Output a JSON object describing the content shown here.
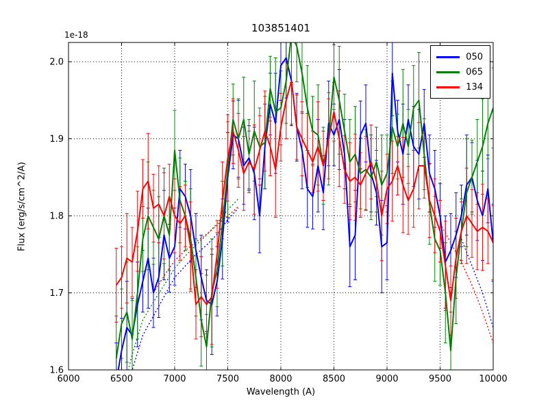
{
  "chart_data": {
    "type": "line",
    "title": "103851401",
    "xlabel": "Wavelength (A)",
    "ylabel": "Flux (erg/s/cm^2/A)",
    "y_offset_factor": "1e-18",
    "xlim": [
      6000,
      10000
    ],
    "ylim": [
      1.6,
      2.025
    ],
    "x_ticks": [
      6000,
      6500,
      7000,
      7500,
      8000,
      8500,
      9000,
      9500,
      10000
    ],
    "y_ticks": [
      1.6,
      1.7,
      1.8,
      1.9,
      2.0
    ],
    "grid": true,
    "grid_style": "dotted",
    "legend_position": "upper right",
    "x": [
      6450,
      6500,
      6550,
      6600,
      6650,
      6700,
      6750,
      6800,
      6850,
      6900,
      6950,
      7000,
      7050,
      7100,
      7150,
      7200,
      7250,
      7300,
      7350,
      7400,
      7450,
      7500,
      7550,
      7600,
      7650,
      7700,
      7750,
      7800,
      7850,
      7900,
      7950,
      8000,
      8050,
      8100,
      8150,
      8200,
      8250,
      8300,
      8350,
      8400,
      8450,
      8500,
      8550,
      8600,
      8650,
      8700,
      8750,
      8800,
      8850,
      8900,
      8950,
      9000,
      9050,
      9100,
      9150,
      9200,
      9250,
      9300,
      9350,
      9400,
      9450,
      9500,
      9550,
      9600,
      9650,
      9700,
      9750,
      9800,
      9850,
      9900,
      9950,
      10000
    ],
    "series": [
      {
        "name": "050",
        "color": "#0000ff",
        "values": [
          1.585,
          1.625,
          1.655,
          1.645,
          1.685,
          1.715,
          1.745,
          1.7,
          1.72,
          1.775,
          1.745,
          1.76,
          1.835,
          1.825,
          1.8,
          1.755,
          1.72,
          1.69,
          1.685,
          1.715,
          1.77,
          1.85,
          1.905,
          1.9,
          1.865,
          1.875,
          1.855,
          1.8,
          1.89,
          1.945,
          1.92,
          1.995,
          2.005,
          1.975,
          1.915,
          1.885,
          1.835,
          1.825,
          1.865,
          1.83,
          1.92,
          1.905,
          1.925,
          1.88,
          1.76,
          1.775,
          1.905,
          1.92,
          1.855,
          1.83,
          1.76,
          1.765,
          1.985,
          1.91,
          1.88,
          1.925,
          1.89,
          1.88,
          1.92,
          1.855,
          1.835,
          1.8,
          1.74,
          1.755,
          1.775,
          1.8,
          1.84,
          1.85,
          1.82,
          1.8,
          1.835,
          1.765
        ],
        "err": [
          0.05,
          0.042,
          0.06,
          0.048,
          0.055,
          0.04,
          0.065,
          0.045,
          0.052,
          0.058,
          0.044,
          0.05,
          0.05,
          0.042,
          0.06,
          0.048,
          0.055,
          0.04,
          0.065,
          0.045,
          0.052,
          0.058,
          0.044,
          0.05,
          0.05,
          0.042,
          0.06,
          0.048,
          0.055,
          0.04,
          0.065,
          0.045,
          0.052,
          0.058,
          0.044,
          0.05,
          0.05,
          0.042,
          0.06,
          0.048,
          0.055,
          0.04,
          0.065,
          0.045,
          0.052,
          0.058,
          0.044,
          0.05,
          0.05,
          0.042,
          0.06,
          0.048,
          0.055,
          0.04,
          0.065,
          0.045,
          0.052,
          0.058,
          0.044,
          0.05,
          0.05,
          0.042,
          0.06,
          0.048,
          0.055,
          0.04,
          0.065,
          0.045,
          0.052,
          0.058,
          0.044,
          0.05
        ]
      },
      {
        "name": "065",
        "color": "#008000",
        "values": [
          1.615,
          1.66,
          1.675,
          1.64,
          1.7,
          1.77,
          1.8,
          1.785,
          1.77,
          1.8,
          1.775,
          1.885,
          1.82,
          1.8,
          1.77,
          1.72,
          1.665,
          1.63,
          1.7,
          1.73,
          1.79,
          1.86,
          1.925,
          1.9,
          1.925,
          1.88,
          1.91,
          1.89,
          1.895,
          1.965,
          1.935,
          1.94,
          1.975,
          2.035,
          2.02,
          1.985,
          1.94,
          1.91,
          1.905,
          1.865,
          1.9,
          1.98,
          1.95,
          1.91,
          1.87,
          1.88,
          1.855,
          1.86,
          1.85,
          1.87,
          1.84,
          1.855,
          1.915,
          1.89,
          1.92,
          1.89,
          1.94,
          1.95,
          1.88,
          1.815,
          1.77,
          1.755,
          1.7,
          1.625,
          1.72,
          1.78,
          1.83,
          1.85,
          1.87,
          1.89,
          1.92,
          1.94
        ],
        "err": [
          0.055,
          0.045,
          0.065,
          0.05,
          0.06,
          0.042,
          0.07,
          0.048,
          0.055,
          0.062,
          0.046,
          0.052,
          0.055,
          0.045,
          0.065,
          0.05,
          0.06,
          0.042,
          0.07,
          0.048,
          0.055,
          0.062,
          0.046,
          0.052,
          0.055,
          0.045,
          0.065,
          0.05,
          0.06,
          0.042,
          0.07,
          0.048,
          0.055,
          0.062,
          0.046,
          0.052,
          0.055,
          0.045,
          0.065,
          0.05,
          0.06,
          0.042,
          0.07,
          0.048,
          0.055,
          0.062,
          0.046,
          0.052,
          0.055,
          0.045,
          0.065,
          0.05,
          0.06,
          0.042,
          0.07,
          0.048,
          0.055,
          0.062,
          0.046,
          0.052,
          0.055,
          0.045,
          0.065,
          0.05,
          0.06,
          0.042,
          0.07,
          0.048,
          0.055,
          0.062,
          0.046,
          0.052
        ]
      },
      {
        "name": "134",
        "color": "#ff0000",
        "values": [
          1.71,
          1.72,
          1.745,
          1.74,
          1.78,
          1.835,
          1.845,
          1.81,
          1.815,
          1.8,
          1.825,
          1.8,
          1.79,
          1.8,
          1.76,
          1.685,
          1.695,
          1.685,
          1.695,
          1.75,
          1.82,
          1.875,
          1.91,
          1.885,
          1.855,
          1.87,
          1.86,
          1.885,
          1.91,
          1.89,
          1.86,
          1.915,
          1.95,
          1.975,
          1.915,
          1.9,
          1.885,
          1.87,
          1.89,
          1.865,
          1.9,
          1.935,
          1.9,
          1.86,
          1.845,
          1.85,
          1.84,
          1.855,
          1.87,
          1.845,
          1.8,
          1.835,
          1.845,
          1.865,
          1.84,
          1.82,
          1.835,
          1.865,
          1.865,
          1.82,
          1.8,
          1.78,
          1.735,
          1.69,
          1.745,
          1.78,
          1.8,
          1.79,
          1.78,
          1.785,
          1.78,
          1.765
        ],
        "err": [
          0.048,
          0.04,
          0.058,
          0.045,
          0.052,
          0.038,
          0.062,
          0.044,
          0.05,
          0.056,
          0.042,
          0.048,
          0.048,
          0.04,
          0.058,
          0.045,
          0.052,
          0.038,
          0.062,
          0.044,
          0.05,
          0.056,
          0.042,
          0.048,
          0.048,
          0.04,
          0.058,
          0.045,
          0.052,
          0.038,
          0.062,
          0.044,
          0.05,
          0.056,
          0.042,
          0.048,
          0.048,
          0.04,
          0.058,
          0.045,
          0.052,
          0.038,
          0.062,
          0.044,
          0.05,
          0.056,
          0.042,
          0.048,
          0.048,
          0.04,
          0.058,
          0.045,
          0.052,
          0.038,
          0.062,
          0.044,
          0.05,
          0.056,
          0.042,
          0.048,
          0.048,
          0.04,
          0.058,
          0.045,
          0.052,
          0.038,
          0.062,
          0.044,
          0.05,
          0.056,
          0.042,
          0.048
        ]
      }
    ],
    "dotted_series": [
      {
        "name": "050-dotted-left",
        "color": "#0000ff",
        "points": [
          [
            6500,
            1.545
          ],
          [
            6600,
            1.6
          ],
          [
            6700,
            1.645
          ],
          [
            6800,
            1.67
          ],
          [
            6900,
            1.695
          ],
          [
            7000,
            1.72
          ],
          [
            7100,
            1.735
          ],
          [
            7200,
            1.75
          ],
          [
            7300,
            1.762
          ],
          [
            7400,
            1.776
          ],
          [
            7500,
            1.795
          ],
          [
            7600,
            1.81
          ]
        ]
      },
      {
        "name": "050-dotted-right",
        "color": "#0000ff",
        "points": [
          [
            9700,
            1.77
          ],
          [
            9800,
            1.735
          ],
          [
            9900,
            1.7
          ],
          [
            10000,
            1.655
          ]
        ]
      },
      {
        "name": "065-dotted-left",
        "color": "#008000",
        "points": [
          [
            6500,
            1.565
          ],
          [
            6600,
            1.62
          ],
          [
            6700,
            1.665
          ],
          [
            6800,
            1.688
          ],
          [
            6900,
            1.71
          ],
          [
            7000,
            1.732
          ],
          [
            7100,
            1.748
          ],
          [
            7200,
            1.762
          ],
          [
            7300,
            1.775
          ],
          [
            7400,
            1.79
          ],
          [
            7500,
            1.808
          ],
          [
            7600,
            1.822
          ]
        ]
      },
      {
        "name": "134-dotted-left",
        "color": "#ff0000",
        "points": [
          [
            6800,
            1.7
          ],
          [
            6900,
            1.722
          ],
          [
            7000,
            1.742
          ],
          [
            7100,
            1.755
          ],
          [
            7200,
            1.766
          ],
          [
            7300,
            1.776
          ],
          [
            7400,
            1.788
          ],
          [
            7500,
            1.8
          ],
          [
            7600,
            1.812
          ]
        ]
      },
      {
        "name": "134-dotted-right",
        "color": "#ff0000",
        "points": [
          [
            9500,
            1.79
          ],
          [
            9600,
            1.765
          ],
          [
            9700,
            1.74
          ],
          [
            9800,
            1.71
          ],
          [
            9900,
            1.675
          ],
          [
            10000,
            1.635
          ]
        ]
      }
    ]
  }
}
